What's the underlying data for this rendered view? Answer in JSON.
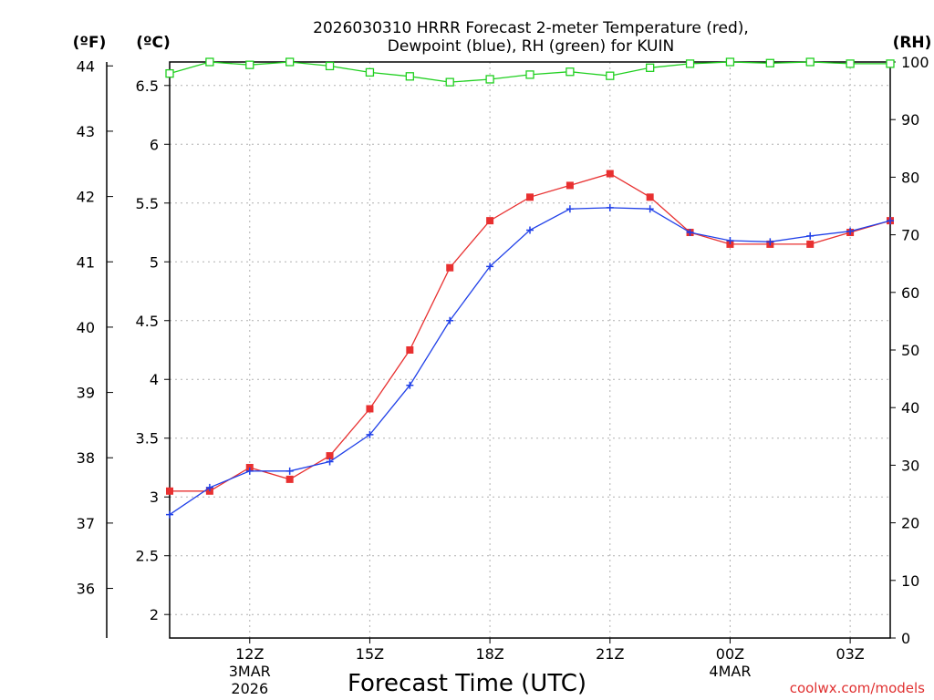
{
  "chart_data": {
    "type": "line",
    "title_line1": "2026030310 HRRR Forecast 2-meter Temperature (red),",
    "title_line2": "Dewpoint (blue), RH (green) for KUIN",
    "xlabel": "Forecast Time (UTC)",
    "credit": "coolwx.com/models",
    "unit_f": "(ºF)",
    "unit_c": "(ºC)",
    "unit_rh": "(RH)",
    "x_hours": [
      10,
      11,
      12,
      13,
      14,
      15,
      16,
      17,
      18,
      19,
      20,
      21,
      22,
      23,
      24,
      25,
      26,
      27,
      28
    ],
    "x_range": [
      10,
      28
    ],
    "x_ticks": [
      {
        "hour": 12,
        "label": "12Z",
        "date1": "3MAR",
        "date2": "2026"
      },
      {
        "hour": 15,
        "label": "15Z",
        "date1": "",
        "date2": ""
      },
      {
        "hour": 18,
        "label": "18Z",
        "date1": "",
        "date2": ""
      },
      {
        "hour": 21,
        "label": "21Z",
        "date1": "",
        "date2": ""
      },
      {
        "hour": 24,
        "label": "00Z",
        "date1": "4MAR",
        "date2": ""
      },
      {
        "hour": 27,
        "label": "03Z",
        "date1": "",
        "date2": ""
      }
    ],
    "c_range": [
      1.8,
      6.7
    ],
    "c_ticks": [
      "2",
      "2.5",
      "3",
      "3.5",
      "4",
      "4.5",
      "5",
      "5.5",
      "6",
      "6.5"
    ],
    "f_ticks": [
      "36",
      "37",
      "38",
      "39",
      "40",
      "41",
      "42",
      "43",
      "44"
    ],
    "rh_range": [
      0,
      100
    ],
    "rh_ticks": [
      "0",
      "10",
      "20",
      "30",
      "40",
      "50",
      "60",
      "70",
      "80",
      "90",
      "100"
    ],
    "series": [
      {
        "name": "Temperature",
        "unit": "C",
        "color": "#e83030",
        "marker": "filled-square",
        "values": [
          3.05,
          3.05,
          3.25,
          3.15,
          3.35,
          3.75,
          4.25,
          4.95,
          5.35,
          5.55,
          5.65,
          5.75,
          5.55,
          5.25,
          5.15,
          5.15,
          5.15,
          5.25,
          5.35
        ]
      },
      {
        "name": "Dewpoint",
        "unit": "C",
        "color": "#2040e8",
        "marker": "plus",
        "values": [
          2.85,
          3.08,
          3.22,
          3.22,
          3.3,
          3.53,
          3.95,
          4.5,
          4.96,
          5.27,
          5.45,
          5.46,
          5.45,
          5.25,
          5.18,
          5.17,
          5.22,
          5.26,
          5.35
        ]
      },
      {
        "name": "RH",
        "unit": "%",
        "color": "#20d020",
        "marker": "open-square",
        "values": [
          98,
          100,
          99.5,
          100,
          99.3,
          98.2,
          97.5,
          96.5,
          97,
          97.8,
          98.3,
          97.6,
          99,
          99.7,
          100,
          99.8,
          100,
          99.7,
          99.7
        ]
      }
    ]
  }
}
